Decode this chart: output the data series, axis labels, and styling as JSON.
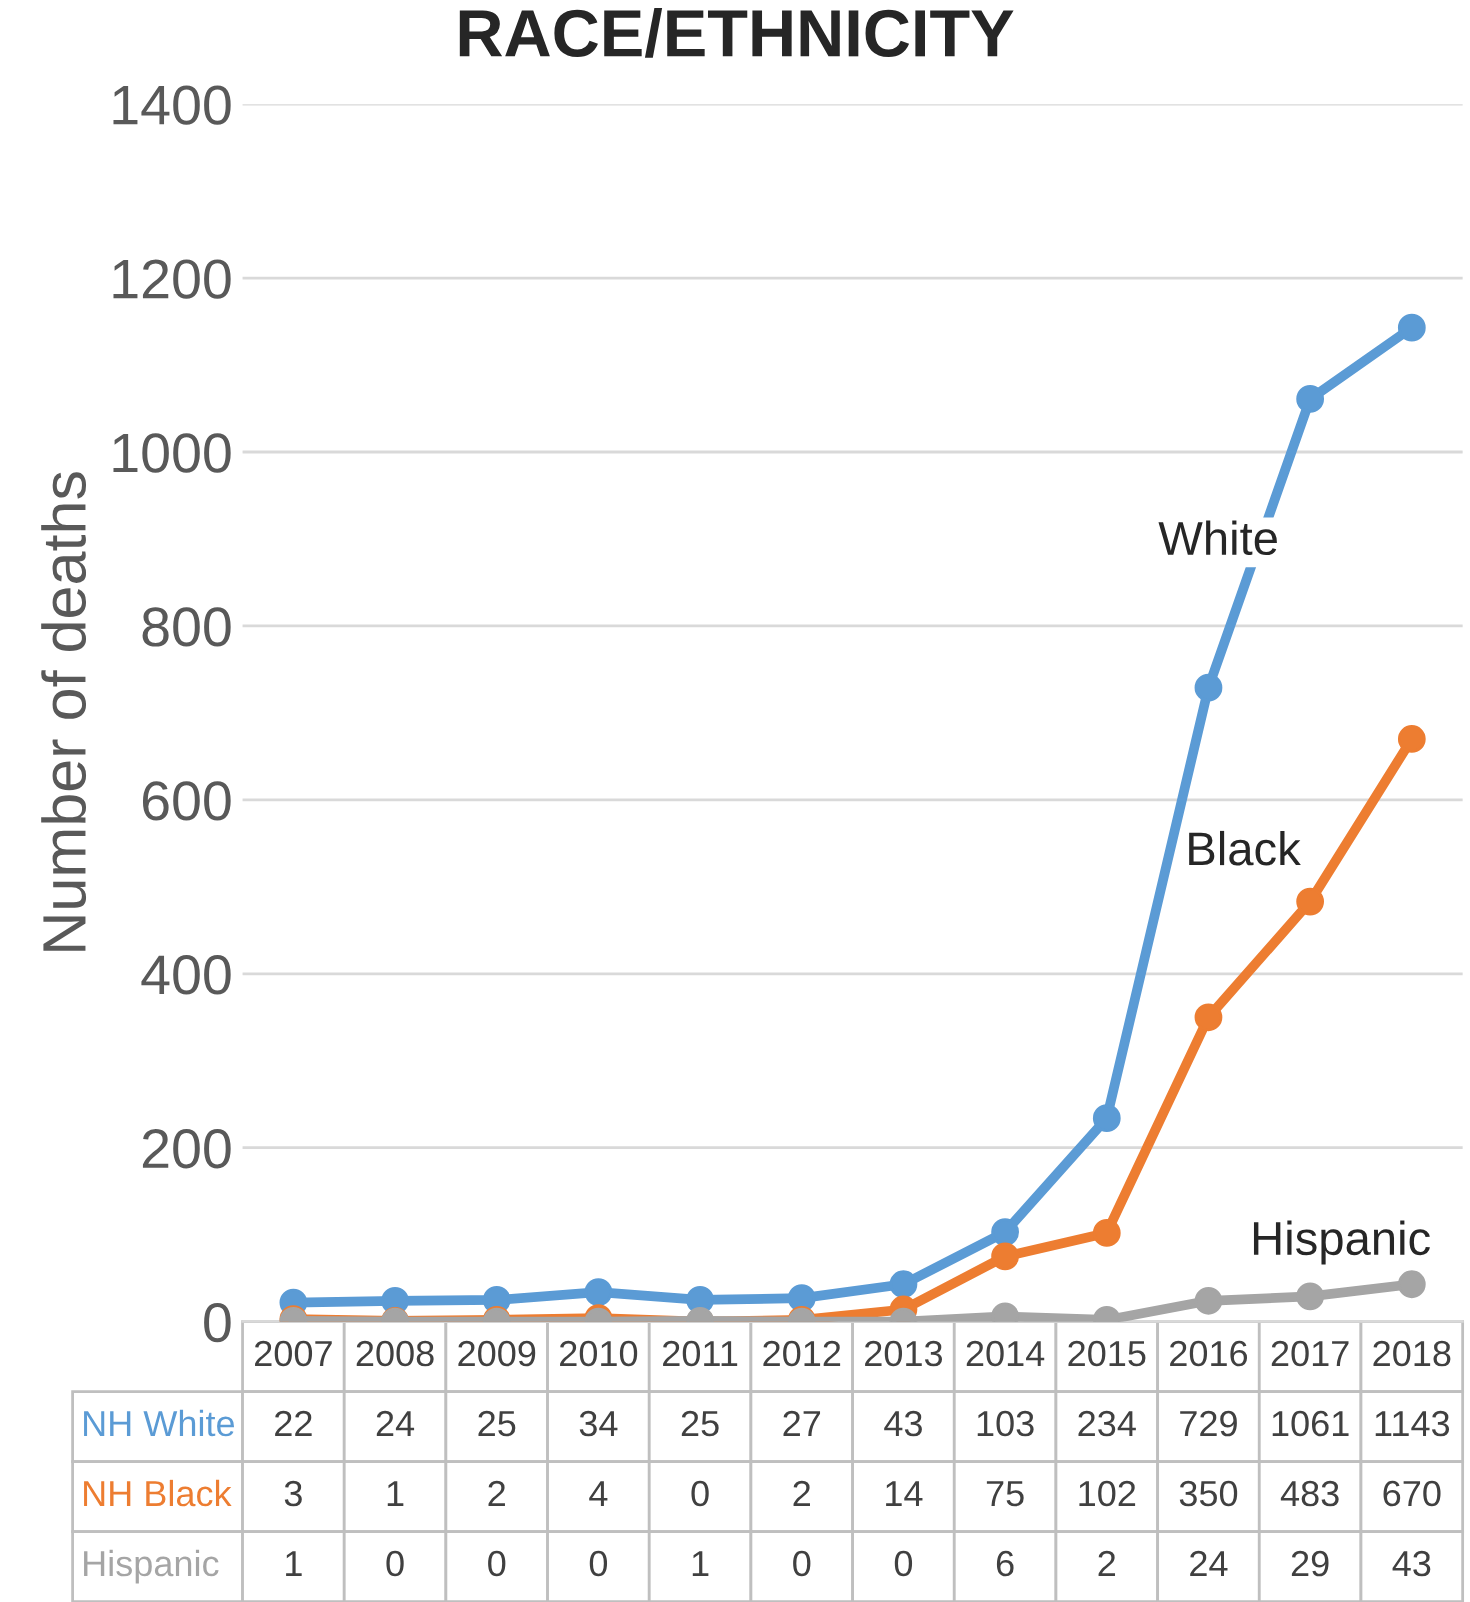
{
  "chart_data": {
    "type": "line",
    "title": "RACE/ETHNICITY",
    "ylabel": "Number of deaths",
    "categories": [
      "2007",
      "2008",
      "2009",
      "2010",
      "2011",
      "2012",
      "2013",
      "2014",
      "2015",
      "2016",
      "2017",
      "2018"
    ],
    "series": [
      {
        "name": "NH White",
        "color": "#5b9bd5",
        "values": [
          22,
          24,
          25,
          34,
          25,
          27,
          43,
          103,
          234,
          729,
          1061,
          1143
        ]
      },
      {
        "name": "NH Black",
        "color": "#ed7d31",
        "values": [
          3,
          1,
          2,
          4,
          0,
          2,
          14,
          75,
          102,
          350,
          483,
          670
        ]
      },
      {
        "name": "Hispanic",
        "color": "#a5a5a5",
        "values": [
          1,
          0,
          0,
          0,
          1,
          0,
          0,
          6,
          2,
          24,
          29,
          43
        ]
      }
    ],
    "annotations": [
      "White",
      "Black",
      "Hispanic"
    ],
    "ylim": [
      0,
      1400
    ],
    "yticks": [
      0,
      200,
      400,
      600,
      800,
      1000,
      1200,
      1400
    ],
    "grid": "y",
    "marker": "circle",
    "line_style": "solid",
    "data_labels": true
  }
}
